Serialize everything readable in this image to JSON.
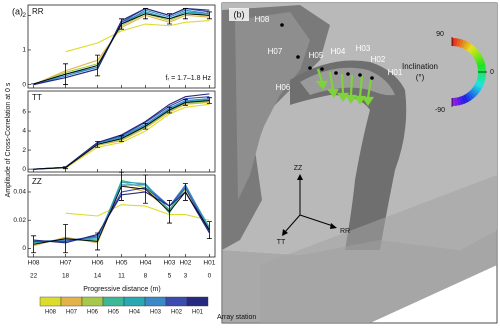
{
  "panel_a_label": "(a)",
  "panel_b_label": "(b)",
  "y_label": "Amplitude of Cross-Correlation at 0 s",
  "x_label": "Progressive distance (m)",
  "legend_title": "Array station",
  "x_axis": {
    "categories": [
      "H08",
      "H07",
      "H06",
      "H05",
      "H04",
      "H03",
      "H02",
      "H01"
    ],
    "x": [
      22,
      18,
      14,
      11,
      8,
      5,
      3,
      0
    ],
    "xlim": [
      22.7,
      -0.7
    ]
  },
  "chart_data": [
    {
      "type": "line",
      "title": "RR",
      "annotation": "fᵣ = 1.7–1.8 Hz",
      "ylim": [
        -0.1,
        2.3
      ],
      "yticks": [
        0,
        1,
        2
      ],
      "series": [
        {
          "name": "H08",
          "color": "#dcdc2c",
          "values": [
            null,
            0.95,
            1.2,
            1.55,
            1.75,
            1.7,
            1.8,
            1.85
          ]
        },
        {
          "name": "H07",
          "color": "#e4b24a",
          "values": [
            0,
            0.4,
            0.7,
            1.65,
            2.0,
            1.8,
            2.0,
            1.95
          ]
        },
        {
          "name": "H06",
          "color": "#a6c84c",
          "values": [
            0,
            0.35,
            0.6,
            1.7,
            2.05,
            1.85,
            2.05,
            2.0
          ]
        },
        {
          "name": "H05",
          "color": "#3cb898",
          "values": [
            0,
            0.3,
            0.55,
            1.75,
            2.1,
            1.9,
            2.1,
            2.0
          ]
        },
        {
          "name": "H04",
          "color": "#2aa8b2",
          "values": [
            0,
            0.3,
            0.5,
            1.8,
            2.1,
            1.9,
            2.1,
            2.05
          ]
        },
        {
          "name": "H03",
          "color": "#3a88c8",
          "values": [
            0,
            0.25,
            0.5,
            1.75,
            2.15,
            1.95,
            2.15,
            2.05
          ]
        },
        {
          "name": "H02",
          "color": "#3a4cb2",
          "values": [
            0,
            0.2,
            0.45,
            1.8,
            2.2,
            2.0,
            2.2,
            2.1
          ]
        },
        {
          "name": "H01",
          "color": "#262a80",
          "values": [
            0,
            0.2,
            0.45,
            1.85,
            2.2,
            2.0,
            2.2,
            2.15
          ]
        }
      ],
      "mean": {
        "color": "#000000",
        "values": [
          0.02,
          0.3,
          0.55,
          1.75,
          2.05,
          1.9,
          2.05,
          2.0
        ],
        "errors": [
          0,
          0.3,
          0.3,
          0.15,
          0.15,
          0.15,
          0.15,
          0.1
        ]
      }
    },
    {
      "type": "line",
      "title": "TT",
      "ylim": [
        -0.3,
        8.2
      ],
      "yticks": [
        0,
        2,
        4,
        6
      ],
      "series": [
        {
          "name": "H08",
          "color": "#dcdc2c",
          "values": [
            null,
            0.1,
            2.3,
            2.8,
            4.0,
            5.8,
            6.5,
            6.8
          ]
        },
        {
          "name": "H07",
          "color": "#e4b24a",
          "values": [
            0,
            0.15,
            2.5,
            3.0,
            4.3,
            6.0,
            6.8,
            7.0
          ]
        },
        {
          "name": "H06",
          "color": "#a6c84c",
          "values": [
            0,
            0.15,
            2.6,
            3.1,
            4.4,
            6.1,
            6.9,
            7.1
          ]
        },
        {
          "name": "H05",
          "color": "#3cb898",
          "values": [
            0,
            0.15,
            2.6,
            3.2,
            4.5,
            6.2,
            7.0,
            7.2
          ]
        },
        {
          "name": "H04",
          "color": "#2aa8b2",
          "values": [
            0,
            0.2,
            2.7,
            3.3,
            4.6,
            6.3,
            7.1,
            7.3
          ]
        },
        {
          "name": "H03",
          "color": "#3a88c8",
          "values": [
            0,
            0.2,
            2.7,
            3.4,
            4.7,
            6.4,
            7.2,
            7.4
          ]
        },
        {
          "name": "H02",
          "color": "#3a4cb2",
          "values": [
            0,
            0.2,
            2.8,
            3.5,
            4.9,
            6.6,
            7.4,
            7.6
          ]
        },
        {
          "name": "H01",
          "color": "#262a80",
          "values": [
            0,
            0.2,
            2.8,
            3.6,
            5.0,
            6.8,
            7.6,
            7.9
          ]
        }
      ],
      "mean": {
        "color": "#000000",
        "values": [
          0,
          0.15,
          2.6,
          3.2,
          4.5,
          6.2,
          7.0,
          7.2
        ],
        "errors": [
          0,
          0.1,
          0.3,
          0.3,
          0.3,
          0.3,
          0.3,
          0.3
        ]
      }
    },
    {
      "type": "line",
      "title": "ZZ",
      "ylim": [
        -0.006,
        0.052
      ],
      "yticks": [
        0,
        0.02,
        0.04
      ],
      "series": [
        {
          "name": "H08",
          "color": "#dcdc2c",
          "values": [
            null,
            0.025,
            0.023,
            0.031,
            0.03,
            0.024,
            0.024,
            0.02
          ]
        },
        {
          "name": "H07",
          "color": "#e4b24a",
          "values": [
            0.002,
            0.008,
            0.004,
            0.045,
            0.04,
            0.028,
            0.04,
            0.012
          ]
        },
        {
          "name": "H06",
          "color": "#a6c84c",
          "values": [
            0.003,
            0.007,
            0.005,
            0.047,
            0.043,
            0.026,
            0.042,
            0.014
          ]
        },
        {
          "name": "H05",
          "color": "#3cb898",
          "values": [
            0.004,
            0.006,
            0.006,
            0.048,
            0.045,
            0.025,
            0.044,
            0.015
          ]
        },
        {
          "name": "H04",
          "color": "#2aa8b2",
          "values": [
            0.004,
            0.006,
            0.007,
            0.047,
            0.046,
            0.027,
            0.045,
            0.014
          ]
        },
        {
          "name": "H03",
          "color": "#3a88c8",
          "values": [
            0.005,
            0.006,
            0.008,
            0.045,
            0.045,
            0.03,
            0.045,
            0.013
          ]
        },
        {
          "name": "H02",
          "color": "#3a4cb2",
          "values": [
            0.005,
            0.005,
            0.009,
            0.04,
            0.043,
            0.03,
            0.043,
            0.012
          ]
        },
        {
          "name": "H01",
          "color": "#262a80",
          "values": [
            0.006,
            0.004,
            0.01,
            0.038,
            0.04,
            0.03,
            0.04,
            0.011
          ]
        }
      ],
      "mean": {
        "color": "#000000",
        "values": [
          0.003,
          0.007,
          0.005,
          0.044,
          0.042,
          0.026,
          0.04,
          0.013
        ],
        "errors": [
          0.006,
          0.01,
          0.006,
          0.01,
          0.01,
          0.008,
          0.006,
          0.006
        ]
      }
    }
  ],
  "panel_b": {
    "stations": [
      "H08",
      "H07",
      "H06",
      "H05",
      "H04",
      "H03",
      "H02",
      "H01"
    ],
    "colorbar_title": "Inclination",
    "colorbar_unit": "(°)",
    "colorbar_ticks": [
      90,
      0,
      -90
    ],
    "axes": [
      "ZZ",
      "RR",
      "TT"
    ]
  }
}
